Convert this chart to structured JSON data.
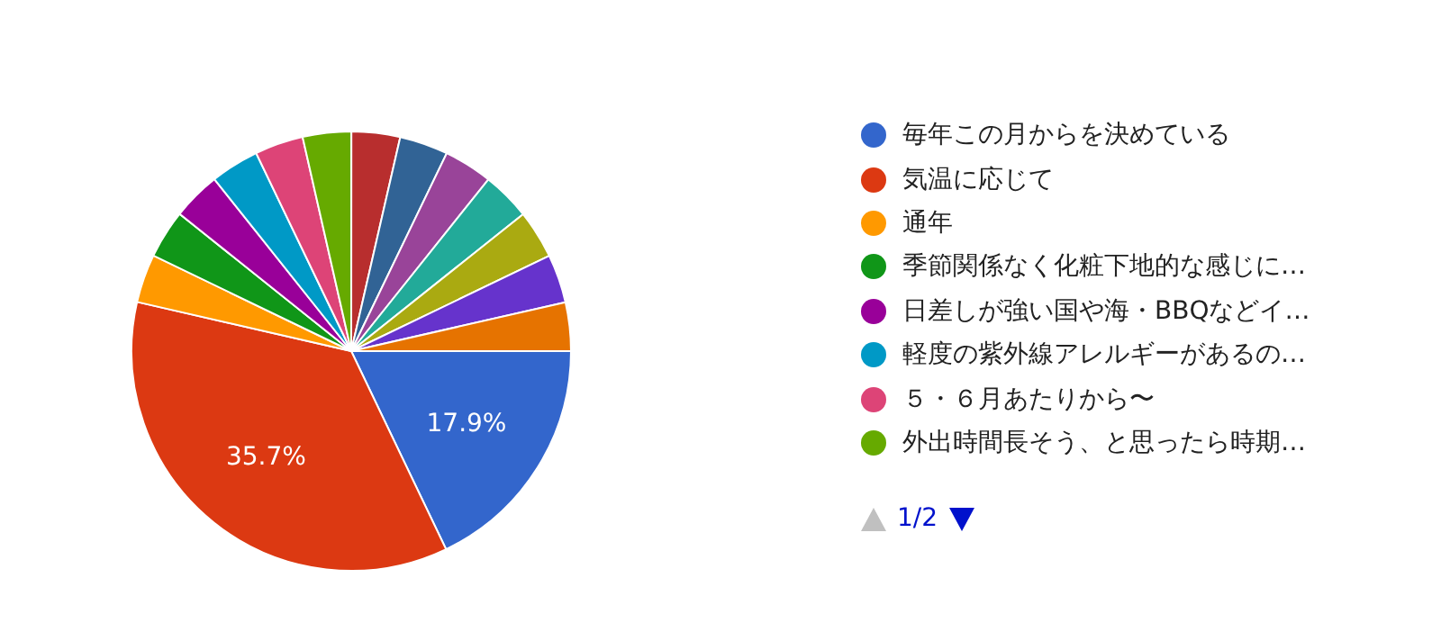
{
  "chart_data": {
    "type": "pie",
    "categories": [
      "毎年この月からを決めている",
      "気温に応じて",
      "通年",
      "季節関係なく化粧下地的な感じに…",
      "日差しが強い国や海・BBQなどイ…",
      "軽度の紫外線アレルギーがあるの…",
      "５・６月あたりから〜",
      "外出時間長そう、と思ったら時期…",
      null,
      null,
      null,
      null,
      null,
      null,
      null
    ],
    "values": [
      17.9,
      35.7,
      3.57,
      3.57,
      3.57,
      3.57,
      3.57,
      3.57,
      3.57,
      3.57,
      3.57,
      3.57,
      3.57,
      3.57,
      3.57
    ],
    "value_labels": [
      "17.9%",
      "35.7%",
      null,
      null,
      null,
      null,
      null,
      null,
      null,
      null,
      null,
      null,
      null,
      null,
      null
    ],
    "colors": [
      "#3366cc",
      "#dc3912",
      "#ff9900",
      "#109618",
      "#990099",
      "#0099c6",
      "#dd4477",
      "#66aa00",
      "#b82e2e",
      "#316395",
      "#994499",
      "#22aa99",
      "#aaaa11",
      "#6633cc",
      "#e67300"
    ],
    "legend": "right",
    "annotations": [
      "1/2"
    ]
  }
}
